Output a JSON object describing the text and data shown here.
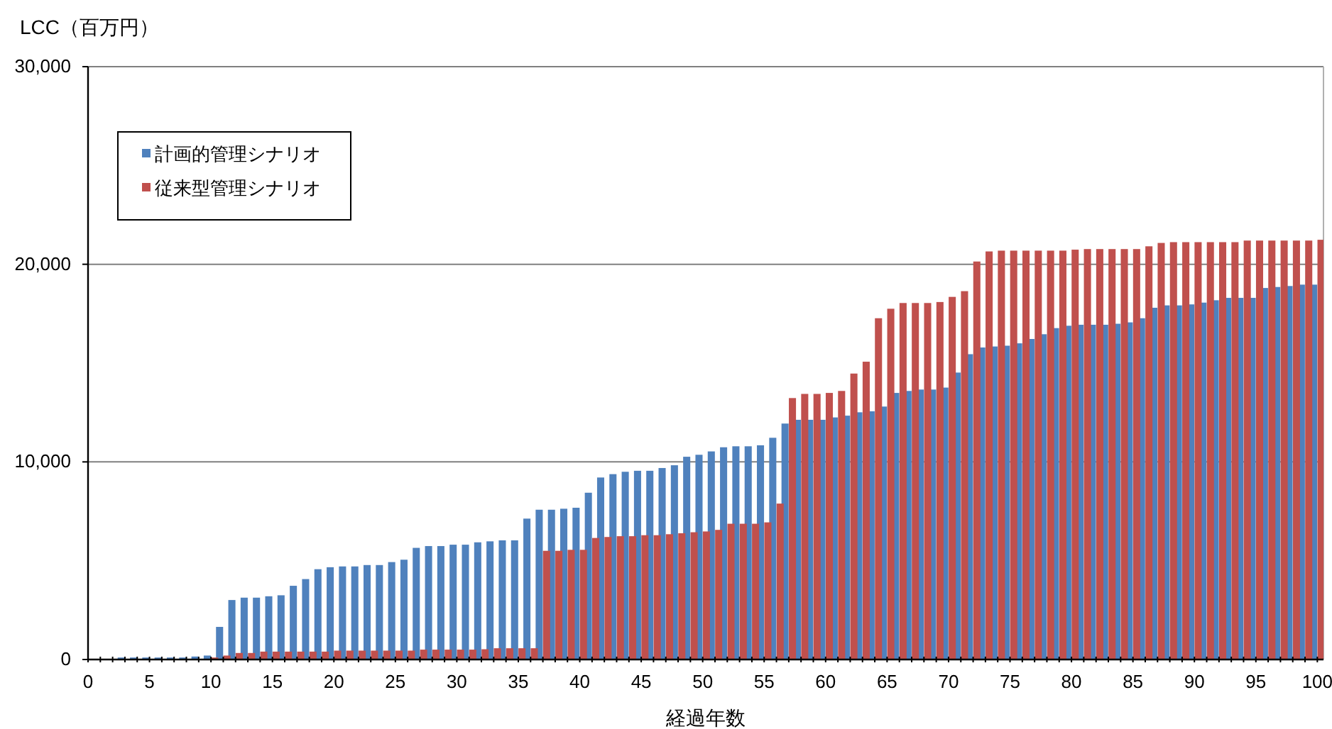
{
  "chart_data": {
    "type": "bar",
    "xlabel": "経過年数",
    "ylabel": "LCC（百万円）",
    "x": [
      0,
      1,
      2,
      3,
      4,
      5,
      6,
      7,
      8,
      9,
      10,
      11,
      12,
      13,
      14,
      15,
      16,
      17,
      18,
      19,
      20,
      21,
      22,
      23,
      24,
      25,
      26,
      27,
      28,
      29,
      30,
      31,
      32,
      33,
      34,
      35,
      36,
      37,
      38,
      39,
      40,
      41,
      42,
      43,
      44,
      45,
      46,
      47,
      48,
      49,
      50,
      51,
      52,
      53,
      54,
      55,
      56,
      57,
      58,
      59,
      60,
      61,
      62,
      63,
      64,
      65,
      66,
      67,
      68,
      69,
      70,
      71,
      72,
      73,
      74,
      75,
      76,
      77,
      78,
      79,
      80,
      81,
      82,
      83,
      84,
      85,
      86,
      87,
      88,
      89,
      90,
      91,
      92,
      93,
      94,
      95,
      96,
      97,
      98,
      99,
      100
    ],
    "series": [
      {
        "name": "計画的管理シナリオ",
        "color": "#4f81bd",
        "values": [
          0,
          0,
          0,
          100,
          100,
          100,
          100,
          100,
          100,
          150,
          200,
          1650,
          3010,
          3130,
          3130,
          3200,
          3250,
          3730,
          4070,
          4570,
          4670,
          4710,
          4710,
          4780,
          4780,
          4930,
          5050,
          5650,
          5740,
          5740,
          5810,
          5810,
          5930,
          5980,
          6030,
          6030,
          7130,
          7580,
          7580,
          7630,
          7680,
          8440,
          9210,
          9380,
          9500,
          9550,
          9550,
          9690,
          9830,
          10260,
          10360,
          10530,
          10740,
          10790,
          10790,
          10840,
          11220,
          11940,
          12130,
          12130,
          12130,
          12250,
          12340,
          12510,
          12560,
          12800,
          13490,
          13590,
          13660,
          13660,
          13760,
          14520,
          15450,
          15790,
          15840,
          15880,
          16000,
          16220,
          16460,
          16770,
          16890,
          16940,
          16940,
          16940,
          16990,
          17060,
          17270,
          17800,
          17920,
          17920,
          17970,
          18060,
          18180,
          18300,
          18300,
          18300,
          18800,
          18850,
          18900,
          18970,
          18970
        ]
      },
      {
        "name": "従来型管理シナリオ",
        "color": "#c0504d",
        "values": [
          0,
          0,
          0,
          0,
          0,
          0,
          0,
          0,
          0,
          0,
          100,
          200,
          330,
          330,
          400,
          400,
          400,
          400,
          400,
          400,
          450,
          450,
          450,
          450,
          450,
          450,
          450,
          500,
          500,
          500,
          500,
          500,
          520,
          570,
          570,
          570,
          570,
          5500,
          5500,
          5550,
          5550,
          6150,
          6200,
          6240,
          6240,
          6290,
          6290,
          6340,
          6390,
          6440,
          6480,
          6560,
          6870,
          6870,
          6870,
          6940,
          7890,
          13230,
          13440,
          13440,
          13490,
          13590,
          14470,
          15070,
          17270,
          17750,
          18040,
          18040,
          18040,
          18090,
          18350,
          18640,
          20140,
          20650,
          20690,
          20690,
          20690,
          20690,
          20690,
          20690,
          20740,
          20770,
          20770,
          20770,
          20770,
          20770,
          20910,
          21080,
          21120,
          21120,
          21120,
          21120,
          21120,
          21120,
          21200,
          21200,
          21200,
          21200,
          21200,
          21200,
          21240
        ]
      }
    ],
    "xlim": [
      0,
      100.5
    ],
    "xticks": [
      0,
      {
        "value": 1,
        "label": null
      },
      {
        "value": 2,
        "label": null
      },
      {
        "value": 3,
        "label": null
      },
      {
        "value": 4,
        "label": null
      },
      5,
      {
        "value": 6,
        "label": null
      },
      {
        "value": 7,
        "label": null
      },
      {
        "value": 8,
        "label": null
      },
      {
        "value": 9,
        "label": null
      },
      10,
      {
        "value": 11,
        "label": null
      },
      {
        "value": 12,
        "label": null
      },
      {
        "value": 13,
        "label": null
      },
      {
        "value": 14,
        "label": null
      },
      15,
      {
        "value": 16,
        "label": null
      },
      {
        "value": 17,
        "label": null
      },
      {
        "value": 18,
        "label": null
      },
      {
        "value": 19,
        "label": null
      },
      20,
      {
        "value": 21,
        "label": null
      },
      {
        "value": 22,
        "label": null
      },
      {
        "value": 23,
        "label": null
      },
      {
        "value": 24,
        "label": null
      },
      25,
      {
        "value": 26,
        "label": null
      },
      {
        "value": 27,
        "label": null
      },
      {
        "value": 28,
        "label": null
      },
      {
        "value": 29,
        "label": null
      },
      30,
      {
        "value": 31,
        "label": null
      },
      {
        "value": 32,
        "label": null
      },
      {
        "value": 33,
        "label": null
      },
      {
        "value": 34,
        "label": null
      },
      35,
      {
        "value": 36,
        "label": null
      },
      {
        "value": 37,
        "label": null
      },
      {
        "value": 38,
        "label": null
      },
      {
        "value": 39,
        "label": null
      },
      40,
      {
        "value": 41,
        "label": null
      },
      {
        "value": 42,
        "label": null
      },
      {
        "value": 43,
        "label": null
      },
      {
        "value": 44,
        "label": null
      },
      45,
      {
        "value": 46,
        "label": null
      },
      {
        "value": 47,
        "label": null
      },
      {
        "value": 48,
        "label": null
      },
      {
        "value": 49,
        "label": null
      },
      50,
      {
        "value": 51,
        "label": null
      },
      {
        "value": 52,
        "label": null
      },
      {
        "value": 53,
        "label": null
      },
      {
        "value": 54,
        "label": null
      },
      55,
      {
        "value": 56,
        "label": null
      },
      {
        "value": 57,
        "label": null
      },
      {
        "value": 58,
        "label": null
      },
      {
        "value": 59,
        "label": null
      },
      60,
      {
        "value": 61,
        "label": null
      },
      {
        "value": 62,
        "label": null
      },
      {
        "value": 63,
        "label": null
      },
      {
        "value": 64,
        "label": null
      },
      65,
      {
        "value": 66,
        "label": null
      },
      {
        "value": 67,
        "label": null
      },
      {
        "value": 68,
        "label": null
      },
      {
        "value": 69,
        "label": null
      },
      70,
      {
        "value": 71,
        "label": null
      },
      {
        "value": 72,
        "label": null
      },
      {
        "value": 73,
        "label": null
      },
      {
        "value": 74,
        "label": null
      },
      75,
      {
        "value": 76,
        "label": null
      },
      {
        "value": 77,
        "label": null
      },
      {
        "value": 78,
        "label": null
      },
      {
        "value": 79,
        "label": null
      },
      80,
      {
        "value": 81,
        "label": null
      },
      {
        "value": 82,
        "label": null
      },
      {
        "value": 83,
        "label": null
      },
      {
        "value": 84,
        "label": null
      },
      85,
      {
        "value": 86,
        "label": null
      },
      {
        "value": 87,
        "label": null
      },
      {
        "value": 88,
        "label": null
      },
      {
        "value": 89,
        "label": null
      },
      90,
      {
        "value": 91,
        "label": null
      },
      {
        "value": 92,
        "label": null
      },
      {
        "value": 93,
        "label": null
      },
      {
        "value": 94,
        "label": null
      },
      95,
      {
        "value": 96,
        "label": null
      },
      {
        "value": 97,
        "label": null
      },
      {
        "value": 98,
        "label": null
      },
      {
        "value": 99,
        "label": null
      },
      100
    ],
    "ylim": [
      0,
      30000
    ],
    "yticks": [
      0,
      {
        "value": 10000,
        "label": "10,000"
      },
      {
        "value": 20000,
        "label": "20,000"
      },
      {
        "value": 30000,
        "label": "30,000"
      }
    ],
    "grid": "y",
    "legend": "top left"
  }
}
